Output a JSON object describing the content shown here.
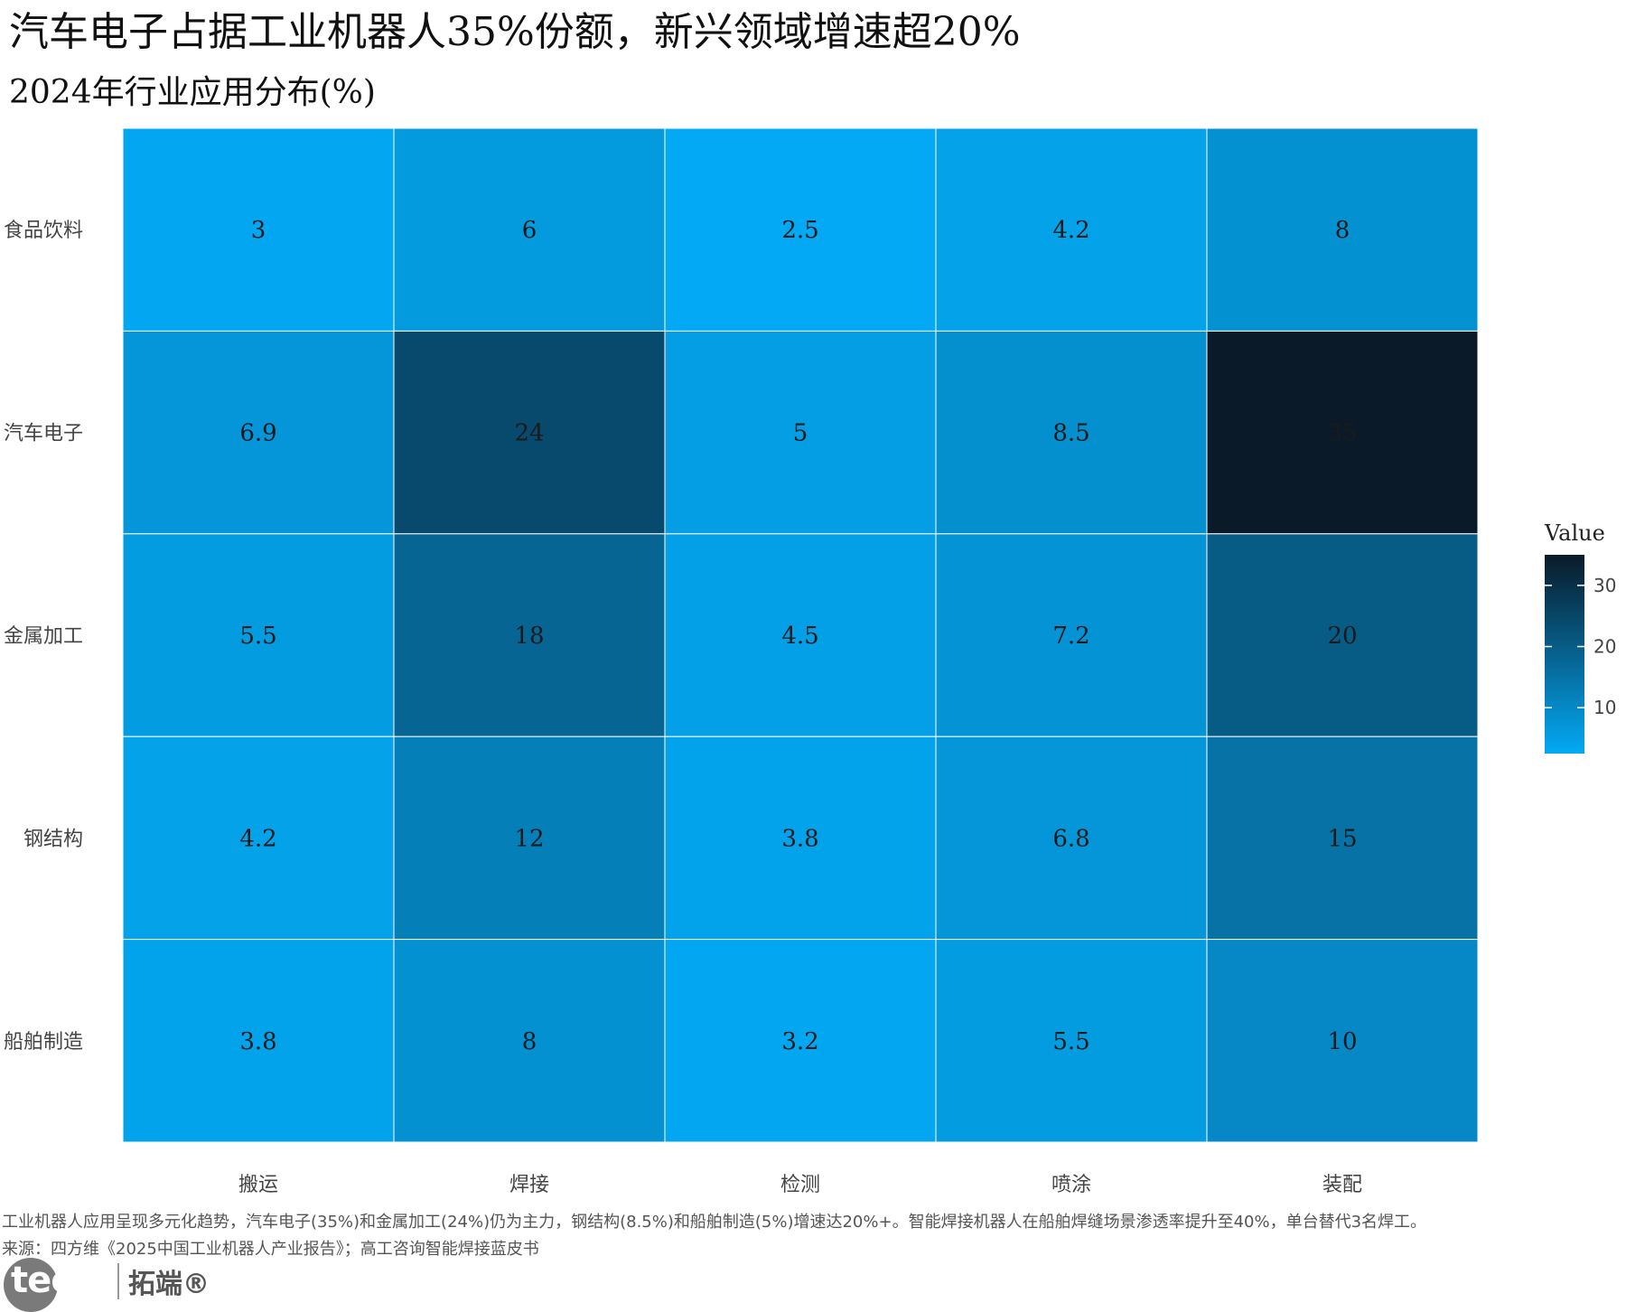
{
  "title": "汽车电子占据工业机器人35%份额，新兴领域增速超20%",
  "subtitle": "2024年行业应用分布(%)",
  "captions": {
    "line1": "工业机器人应用呈现多元化趋势，汽车电子(35%)和金属加工(24%)仍为主力，钢结构(8.5%)和船舶制造(5%)增速达20%+。智能焊接机器人在船舶焊缝场景渗透率提升至40%，单台替代3名焊工。",
    "line2": "来源：四方维《2025中国工业机器人产业报告》；高工咨询智能焊接蓝皮书"
  },
  "logo": {
    "brand": "tecdat",
    "brand_cn": "拓端®"
  },
  "colors": {
    "low": "#03a9f4",
    "high": "#0a1a28",
    "grid": "#ffffff"
  },
  "chart_data": {
    "type": "heatmap",
    "x_categories": [
      "搬运",
      "焊接",
      "检测",
      "喷涂",
      "装配"
    ],
    "y_categories": [
      "食品饮料",
      "汽车电子",
      "金属加工",
      "钢结构",
      "船舶制造"
    ],
    "values": [
      [
        3,
        6,
        2.5,
        4.2,
        8
      ],
      [
        6.9,
        24,
        5,
        8.5,
        35
      ],
      [
        5.5,
        18,
        4.5,
        7.2,
        20
      ],
      [
        4.2,
        12,
        3.8,
        6.8,
        15
      ],
      [
        3.8,
        8,
        3.2,
        5.5,
        10
      ]
    ],
    "value_labels": [
      [
        "3",
        "6",
        "2.5",
        "4.2",
        "8"
      ],
      [
        "6.9",
        "24",
        "5",
        "8.5",
        "35"
      ],
      [
        "5.5",
        "18",
        "4.5",
        "7.2",
        "20"
      ],
      [
        "4.2",
        "12",
        "3.8",
        "6.8",
        "15"
      ],
      [
        "3.8",
        "8",
        "3.2",
        "5.5",
        "10"
      ]
    ],
    "legend": {
      "title": "Value",
      "ticks": [
        10,
        20,
        30
      ],
      "range": [
        2.5,
        35
      ],
      "placement": "right"
    }
  }
}
